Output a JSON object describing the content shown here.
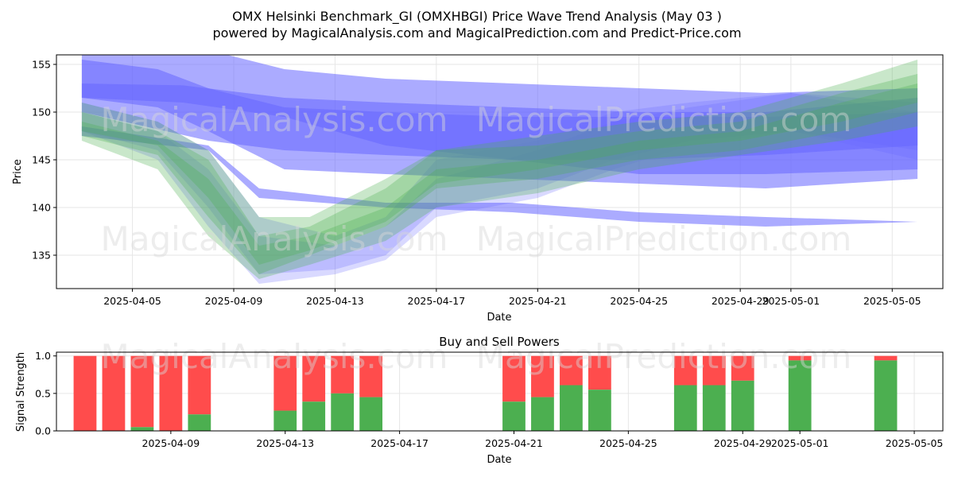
{
  "title_line1": "OMX Helsinki Benchmark_GI (OMXHBGI) Price Wave Trend Analysis (May 03 )",
  "title_line2": "powered by MagicalAnalysis.com and MagicalPrediction.com and Predict-Price.com",
  "watermarks": [
    "MagicalAnalysis.com",
    "MagicalPrediction.com"
  ],
  "colors": {
    "blue_band": "#6666ff",
    "green_band": "#4caf50",
    "buy": "#4caf50",
    "sell": "#ff4c4c"
  },
  "chart_data": [
    {
      "type": "area",
      "title": "",
      "xlabel": "Date",
      "ylabel": "Price",
      "x_ticks": [
        "2025-04-05",
        "2025-04-09",
        "2025-04-13",
        "2025-04-17",
        "2025-04-21",
        "2025-04-25",
        "2025-04-29",
        "2025-05-01",
        "2025-05-05"
      ],
      "y_ticks": [
        135,
        140,
        145,
        150,
        155
      ],
      "ylim": [
        131.5,
        156
      ],
      "xlim": [
        "2025-04-02",
        "2025-05-07"
      ],
      "grid": true,
      "series": [
        {
          "color": "blue",
          "opacity": 0.55,
          "x": [
            "2025-04-03",
            "2025-04-06",
            "2025-04-08",
            "2025-04-11",
            "2025-04-15",
            "2025-04-20",
            "2025-04-25",
            "2025-04-30",
            "2025-05-06"
          ],
          "upper": [
            155.5,
            154.5,
            152.5,
            150.5,
            150,
            149.5,
            149.5,
            149.5,
            150
          ],
          "lower": [
            151.5,
            150.5,
            148,
            144,
            143.5,
            143,
            142.5,
            142,
            143
          ]
        },
        {
          "color": "blue",
          "opacity": 0.55,
          "x": [
            "2025-04-03",
            "2025-04-08",
            "2025-04-11",
            "2025-04-15",
            "2025-04-20",
            "2025-04-25",
            "2025-04-30",
            "2025-05-06"
          ],
          "upper": [
            157,
            156.5,
            154.5,
            153.5,
            153,
            152.5,
            152,
            152.5
          ],
          "lower": [
            150,
            147,
            146,
            145.5,
            145,
            145,
            145.5,
            146.5
          ]
        },
        {
          "color": "blue",
          "opacity": 0.55,
          "x": [
            "2025-04-03",
            "2025-04-07",
            "2025-04-11",
            "2025-04-15",
            "2025-04-20",
            "2025-04-25",
            "2025-04-30",
            "2025-05-06"
          ],
          "upper": [
            153,
            152.8,
            151.5,
            151,
            150.5,
            150,
            150,
            151.5
          ],
          "lower": [
            151.5,
            151,
            149.5,
            146.5,
            145,
            143.5,
            143.5,
            144
          ]
        },
        {
          "color": "blue",
          "opacity": 0.55,
          "x": [
            "2025-04-03",
            "2025-04-08",
            "2025-04-10",
            "2025-04-15",
            "2025-04-20",
            "2025-04-25",
            "2025-04-30",
            "2025-05-06"
          ],
          "upper": [
            148.5,
            146.5,
            142,
            140.5,
            140.5,
            139.5,
            139,
            138.5
          ],
          "lower": [
            147.5,
            146,
            141,
            140,
            139.5,
            138.5,
            138,
            138.5
          ]
        },
        {
          "color": "green",
          "opacity": 0.3,
          "x": [
            "2025-04-03",
            "2025-04-06",
            "2025-04-08",
            "2025-04-10",
            "2025-04-12",
            "2025-04-15",
            "2025-04-17",
            "2025-04-21",
            "2025-04-25",
            "2025-04-29",
            "2025-05-03",
            "2025-05-06"
          ],
          "upper": [
            150,
            148,
            145,
            137,
            138,
            142,
            146,
            146.5,
            148,
            149,
            152,
            154
          ],
          "lower": [
            147.5,
            145.5,
            139,
            133,
            135,
            138,
            142,
            143,
            145,
            146,
            148,
            150
          ]
        },
        {
          "color": "green",
          "opacity": 0.3,
          "x": [
            "2025-04-03",
            "2025-04-06",
            "2025-04-08",
            "2025-04-10",
            "2025-04-12",
            "2025-04-15",
            "2025-04-17",
            "2025-04-21",
            "2025-04-25",
            "2025-04-29",
            "2025-05-03",
            "2025-05-06"
          ],
          "upper": [
            151,
            149,
            146,
            139,
            139,
            143,
            146,
            147.5,
            149,
            150,
            153,
            155.5
          ],
          "lower": [
            148,
            146.5,
            141,
            134,
            135.5,
            138.5,
            142.5,
            144,
            146,
            147,
            149,
            151
          ]
        },
        {
          "color": "green",
          "opacity": 0.3,
          "x": [
            "2025-04-03",
            "2025-04-06",
            "2025-04-08",
            "2025-04-10",
            "2025-04-12",
            "2025-04-15",
            "2025-04-17",
            "2025-04-21",
            "2025-04-25",
            "2025-04-29",
            "2025-05-03",
            "2025-05-06"
          ],
          "upper": [
            149,
            147,
            143,
            136,
            137,
            140,
            144,
            145,
            147,
            148,
            151,
            153
          ],
          "lower": [
            147,
            144,
            137,
            132.5,
            134,
            136.5,
            140,
            141.5,
            144,
            145.5,
            147,
            148.5
          ]
        },
        {
          "color": "blue",
          "opacity": 0.25,
          "x": [
            "2025-04-03",
            "2025-04-06",
            "2025-04-08",
            "2025-04-10",
            "2025-04-13",
            "2025-04-15",
            "2025-04-17",
            "2025-04-21",
            "2025-04-24",
            "2025-04-27",
            "2025-05-01",
            "2025-05-06"
          ],
          "upper": [
            151,
            149,
            146,
            139,
            137,
            139,
            145,
            147,
            150,
            151,
            152,
            150
          ],
          "lower": [
            148,
            146,
            140,
            133,
            133.5,
            135,
            140,
            142,
            145,
            147,
            148,
            145
          ]
        },
        {
          "color": "blue",
          "opacity": 0.25,
          "x": [
            "2025-04-03",
            "2025-04-06",
            "2025-04-08",
            "2025-04-10",
            "2025-04-13",
            "2025-04-15",
            "2025-04-17",
            "2025-04-21",
            "2025-04-24",
            "2025-04-27",
            "2025-05-01",
            "2025-05-06"
          ],
          "upper": [
            150,
            148,
            144,
            137,
            136,
            138,
            143,
            146,
            149,
            150.5,
            152,
            151
          ],
          "lower": [
            148,
            145,
            138,
            132,
            133,
            134.5,
            139,
            141,
            144,
            146.5,
            148,
            146
          ]
        }
      ]
    },
    {
      "type": "bar",
      "title": "Buy and Sell Powers",
      "xlabel": "Date",
      "ylabel": "Signal Strength",
      "x_ticks": [
        "2025-04-09",
        "2025-04-13",
        "2025-04-17",
        "2025-04-21",
        "2025-04-25",
        "2025-04-29",
        "2025-05-01",
        "2025-05-05"
      ],
      "y_ticks": [
        "0.0",
        "0.5",
        "1.0"
      ],
      "ylim": [
        0,
        1.05
      ],
      "xlim": [
        "2025-04-05",
        "2025-05-06"
      ],
      "grid": true,
      "series": [
        {
          "name": "buy",
          "values": [
            0,
            0,
            0.05,
            0,
            0.22,
            0.27,
            0.39,
            0.5,
            0.45,
            0.39,
            0.45,
            0.61,
            0.55,
            0.61,
            0.61,
            0.67,
            0.94,
            0.94
          ]
        },
        {
          "name": "sell",
          "values": [
            1,
            1,
            0.95,
            1,
            0.78,
            0.73,
            0.61,
            0.5,
            0.55,
            0.61,
            0.55,
            0.39,
            0.45,
            0.39,
            0.39,
            0.33,
            0.06,
            0.06
          ]
        }
      ],
      "categories": [
        "2025-04-06",
        "2025-04-07",
        "2025-04-08",
        "2025-04-09",
        "2025-04-10",
        "2025-04-13",
        "2025-04-14",
        "2025-04-15",
        "2025-04-16",
        "2025-04-21",
        "2025-04-22",
        "2025-04-23",
        "2025-04-24",
        "2025-04-27",
        "2025-04-28",
        "2025-04-29",
        "2025-05-01",
        "2025-05-04"
      ]
    }
  ]
}
